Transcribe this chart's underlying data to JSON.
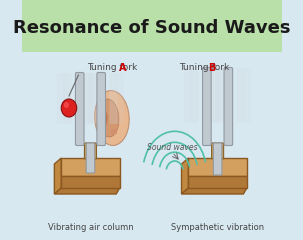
{
  "title": "Resonance of Sound Waves",
  "title_fontsize": 13,
  "title_color": "#1a1a1a",
  "title_bg": "#b8e0a8",
  "bg_color": "#d8e8f0",
  "label_a": "Tuning fork ",
  "label_a_letter": "A",
  "label_b": "Tuning fork ",
  "label_b_letter": "B",
  "caption_a": "Vibrating air column",
  "caption_b": "Sympathetic vibration",
  "sound_waves_label": "Sound waves",
  "label_color": "#444444",
  "letter_color": "#cc0000",
  "fork_color_main": "#c0c8d0",
  "fork_color_dark": "#9098a0",
  "fork_color_light": "#e0e5e8",
  "wood_top": "#d4a060",
  "wood_front": "#b07838",
  "wood_side": "#c08840",
  "wood_edge": "#8a5820",
  "peg_color": "#c8a060",
  "peg_edge": "#8a6020",
  "vibration_color": "#d0d8e0",
  "wave_color": "#50c0a8",
  "ear_skin": "#e8b890",
  "ear_inner": "#d49870",
  "ear_canal": "#c07850",
  "ball_color": "#dd2020",
  "ball_edge": "#881010",
  "string_color": "#666666"
}
